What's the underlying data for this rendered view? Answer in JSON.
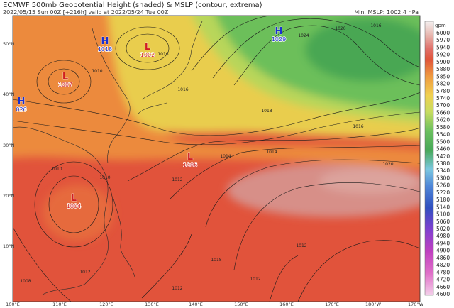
{
  "header": {
    "title": "ECMWF 500mb Geopotential Height (shaded) & MSLP (contour, extrema)",
    "subtitle": "2022/05/15 Sun 00Z [+216h] valid at 2022/05/24 Tue 00Z",
    "min_mslp": "Min. MSLP: 1002.4 hPa"
  },
  "colorbar": {
    "unit": "gpm",
    "labels": [
      "6000",
      "5970",
      "5940",
      "5920",
      "5900",
      "5880",
      "5850",
      "5820",
      "5780",
      "5740",
      "5700",
      "5660",
      "5620",
      "5580",
      "5540",
      "5500",
      "5460",
      "5420",
      "5380",
      "5340",
      "5300",
      "5260",
      "5220",
      "5180",
      "5140",
      "5100",
      "5060",
      "5020",
      "4980",
      "4940",
      "4900",
      "4860",
      "4820",
      "4780",
      "4720",
      "4660",
      "4600"
    ]
  },
  "axes": {
    "lat_labels": [
      "50°N",
      "40°N",
      "30°N",
      "20°N",
      "10°N"
    ],
    "lon_labels": [
      "100°E",
      "110°E",
      "120°E",
      "130°E",
      "140°E",
      "150°E",
      "160°E",
      "170°E",
      "180°W",
      "170°W"
    ]
  },
  "pressure_centers": [
    {
      "symbol": "H",
      "value": "1018"
    },
    {
      "symbol": "L",
      "value": "1002"
    },
    {
      "symbol": "H",
      "value": "1029"
    },
    {
      "symbol": "L",
      "value": "1007"
    },
    {
      "symbol": "H",
      "value": "026"
    },
    {
      "symbol": "L",
      "value": "1006"
    },
    {
      "symbol": "L",
      "value": "1004"
    }
  ],
  "contour_labels": [
    "1016",
    "1010",
    "1012",
    "1014",
    "1016",
    "1018",
    "1020",
    "1024",
    "1016",
    "1012",
    "1014",
    "1016",
    "1012",
    "1018",
    "1020",
    "1012",
    "1008",
    "1010",
    "1010",
    "1012"
  ]
}
